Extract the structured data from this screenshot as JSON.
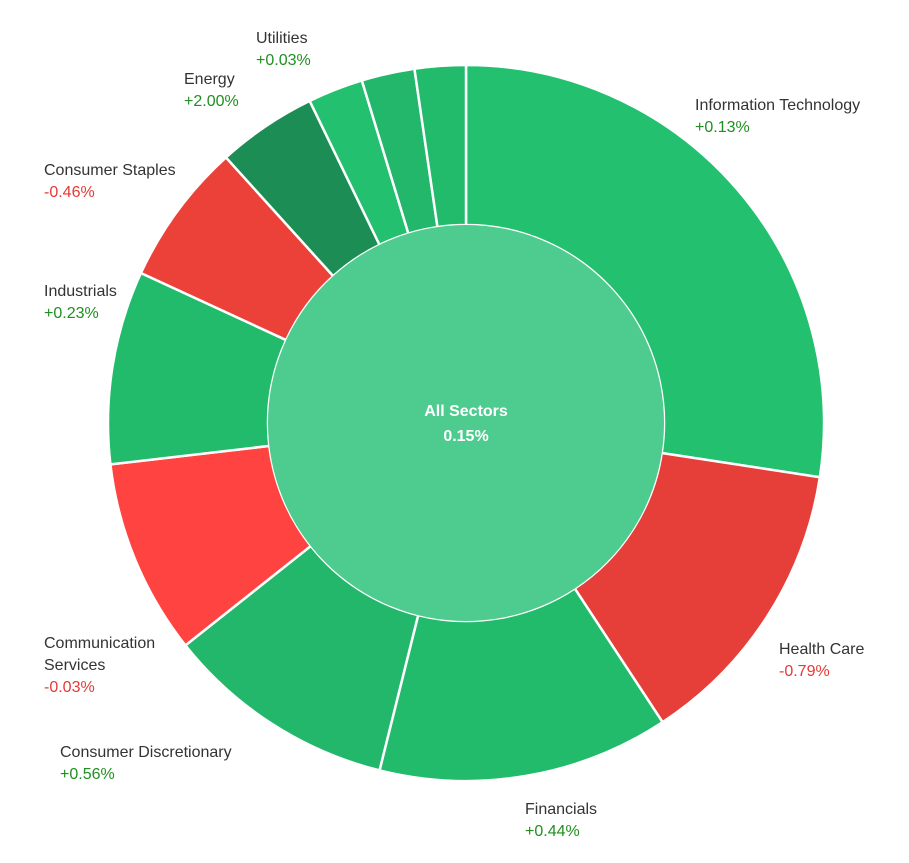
{
  "chart_data": {
    "type": "donut",
    "center": {
      "label": "All Sectors",
      "value": "0.15%"
    },
    "colors": {
      "center": "#4ECB8E",
      "positive_text": "#1f8f1f",
      "negative_text": "#e53935"
    },
    "sectors": [
      {
        "name": "Information Technology",
        "change": "+0.13%",
        "share": 28.6,
        "color": "#22C06F"
      },
      {
        "name": "Health Care",
        "change": "-0.79%",
        "share": 13.9,
        "color": "#E63E38"
      },
      {
        "name": "Financials",
        "change": "+0.44%",
        "share": 13.7,
        "color": "#22BB6C"
      },
      {
        "name": "Consumer Discretionary",
        "change": "+0.56%",
        "share": 10.9,
        "color": "#22B76A"
      },
      {
        "name": "Communication Services",
        "change": "-0.03%",
        "share": 9.2,
        "color": "#FF4340"
      },
      {
        "name": "Industrials",
        "change": "+0.23%",
        "share": 9.1,
        "color": "#22BB6C"
      },
      {
        "name": "Consumer Staples",
        "change": "-0.46%",
        "share": 6.7,
        "color": "#EB4139"
      },
      {
        "name": "Energy",
        "change": "+2.00%",
        "share": 4.7,
        "color": "#1C8E55"
      },
      {
        "name": "",
        "change": "",
        "share": 2.6,
        "color": "#22C06F"
      },
      {
        "name": "",
        "change": "",
        "share": 2.5,
        "color": "#22B76A"
      },
      {
        "name": "Utilities",
        "change": "+0.03%",
        "share": 2.4,
        "color": "#22BB6C"
      }
    ]
  }
}
